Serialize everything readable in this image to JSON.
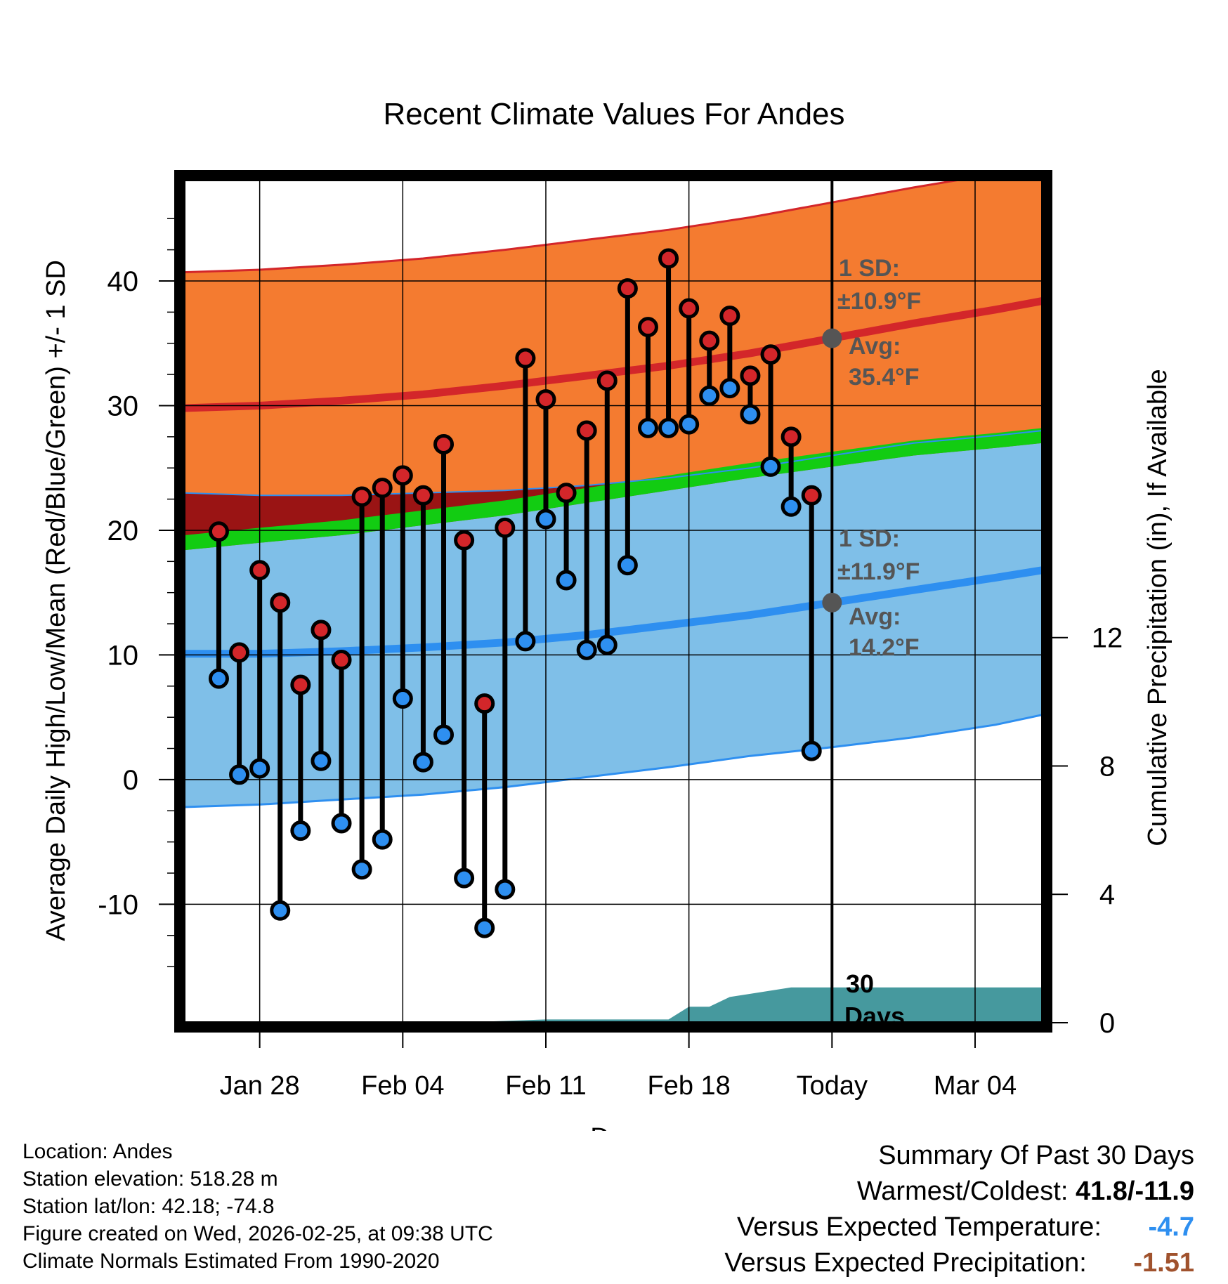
{
  "chart_data": {
    "type": "line",
    "title": "Recent Climate Values For Andes",
    "xlabel": "Day",
    "ylabel": "Average Daily High/Low/Mean (Red/Blue/Green) +/- 1 SD",
    "y2label": "Cumulative Precipitation (in), If Available",
    "xlim": [
      -3.7,
      38.3
    ],
    "ylim": [
      -19.5,
      48
    ],
    "y2lim": [
      0,
      13
    ],
    "x_ticks": [
      {
        "x": 0,
        "label": "Jan 28"
      },
      {
        "x": 7,
        "label": "Feb 04"
      },
      {
        "x": 14,
        "label": "Feb 11"
      },
      {
        "x": 21,
        "label": "Feb 18"
      },
      {
        "x": 28,
        "label": "Today"
      },
      {
        "x": 35,
        "label": "Mar 04"
      }
    ],
    "y_ticks": [
      -10,
      0,
      10,
      20,
      30,
      40
    ],
    "y2_ticks": [
      0,
      4,
      8,
      12
    ],
    "grid": true,
    "today_x": 28,
    "days_label": [
      "30",
      "Days"
    ],
    "annotations": {
      "high": {
        "sd_line1": "1 SD:",
        "sd_line2": "±10.9°F",
        "avg_line1": "Avg:",
        "avg_line2": "35.4°F",
        "avg_value": 35.4
      },
      "low": {
        "sd_line1": "1 SD:",
        "sd_line2": "±11.9°F",
        "avg_line1": "Avg:",
        "avg_line2": "14.2°F",
        "avg_value": 14.2
      }
    },
    "observed": {
      "x": [
        -2,
        -1,
        0,
        1,
        2,
        3,
        4,
        5,
        6,
        7,
        8,
        9,
        10,
        11,
        12,
        13,
        14,
        15,
        16,
        17,
        18,
        19,
        20,
        21,
        22,
        23,
        24,
        25,
        26,
        27
      ],
      "high": [
        19.9,
        10.2,
        16.8,
        14.2,
        7.6,
        12.0,
        9.6,
        22.7,
        23.4,
        24.4,
        22.8,
        26.9,
        19.2,
        6.1,
        20.2,
        33.8,
        30.5,
        23.0,
        28.0,
        32.0,
        39.4,
        36.3,
        41.8,
        37.8,
        35.2,
        37.2,
        32.4,
        34.1,
        27.5,
        22.8
      ],
      "low": [
        8.1,
        0.4,
        0.9,
        -10.5,
        -4.1,
        1.5,
        -3.5,
        -7.2,
        -4.8,
        6.5,
        1.4,
        3.6,
        -7.9,
        -11.9,
        -8.8,
        11.1,
        20.9,
        16.0,
        10.4,
        10.8,
        17.2,
        28.2,
        28.2,
        28.5,
        30.8,
        31.4,
        29.3,
        25.1,
        21.9,
        2.3
      ]
    },
    "normals": {
      "x": [
        -3.7,
        0,
        4,
        8,
        12,
        16,
        20,
        24,
        28,
        32,
        36,
        38.3
      ],
      "high_avg": [
        29.8,
        30.0,
        30.4,
        30.9,
        31.6,
        32.4,
        33.2,
        34.2,
        35.4,
        36.6,
        37.7,
        38.4
      ],
      "low_avg": [
        10.1,
        10.1,
        10.3,
        10.6,
        11.0,
        11.6,
        12.4,
        13.2,
        14.2,
        15.2,
        16.2,
        16.8
      ],
      "mean_avg": [
        20.0,
        20.1,
        20.3,
        20.8,
        21.5,
        22.3,
        23.2,
        24.3,
        25.4,
        26.2,
        27.0,
        27.7
      ],
      "high_upper": [
        40.7,
        40.9,
        41.3,
        41.8,
        42.5,
        43.3,
        44.1,
        45.1,
        46.3,
        47.5,
        48.6,
        49.3
      ],
      "high_lower": [
        23.0,
        22.8,
        22.8,
        23.0,
        23.2,
        23.6,
        24.2,
        25.0,
        26.0,
        27.0,
        27.6,
        28.0
      ],
      "low_upper": [
        18.4,
        19.0,
        19.6,
        20.4,
        21.2,
        22.2,
        23.2,
        24.2,
        25.1,
        26.0,
        26.6,
        27.0
      ],
      "low_lower": [
        -2.2,
        -2.0,
        -1.6,
        -1.2,
        -0.6,
        0.2,
        1.0,
        1.9,
        2.6,
        3.4,
        4.4,
        5.2
      ]
    },
    "precipitation": {
      "x": [
        -3.7,
        9.5,
        14.0,
        16.0,
        18.0,
        20.0,
        21.0,
        22.0,
        23.0,
        24.0,
        26.0,
        27.0,
        38.3
      ],
      "cumulative": [
        0,
        0,
        0.1,
        0.1,
        0.1,
        0.1,
        0.5,
        0.5,
        0.8,
        0.9,
        1.1,
        1.1,
        1.1
      ]
    },
    "colors": {
      "high_band": "#f47b30",
      "high_line": "#d3262a",
      "low_band": "#7fbfe8",
      "low_line": "#2e8ff0",
      "mean_band": "#12cc12",
      "overlap_band": "#9a1414",
      "precip": "#46999e",
      "high_marker": "#d3262a",
      "low_marker": "#2e8ff0",
      "avg_marker": "#555555",
      "annotation_text": "#555555"
    }
  },
  "info": {
    "location": "Location: Andes",
    "elevation": "Station elevation: 518.28 m",
    "latlon": "Station lat/lon: 42.18; -74.8",
    "created": "Figure created on Wed, 2026-02-25, at 09:38 UTC",
    "normals": "Climate Normals Estimated From 1990-2020"
  },
  "summary": {
    "title": "Summary Of Past 30 Days",
    "warmest_label": "Warmest/Coldest:",
    "warmest_value": "41.8/-11.9",
    "temp_label": "Versus Expected Temperature:",
    "temp_value": "-4.7",
    "temp_color": "#2e8ff0",
    "precip_label": "Versus Expected Precipitation:",
    "precip_value": "-1.51",
    "precip_color": "#a0522d"
  }
}
